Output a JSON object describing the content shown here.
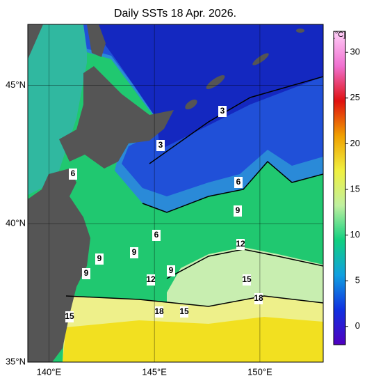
{
  "map": {
    "title": "Daily SSTs 18 Apr. 2026.",
    "lonlim": [
      139,
      153
    ],
    "latlim": [
      35,
      47.2
    ],
    "lon_ticks": [
      {
        "value": 140,
        "label": "140°E"
      },
      {
        "value": 145,
        "label": "145°E"
      },
      {
        "value": 150,
        "label": "150°E"
      }
    ],
    "lat_ticks": [
      {
        "value": 35,
        "label": "35°N"
      },
      {
        "value": 40,
        "label": "40°N"
      },
      {
        "value": 45,
        "label": "45°N"
      }
    ],
    "contour_labels": [
      "3",
      "3",
      "6",
      "6",
      "9",
      "6",
      "12",
      "9",
      "9",
      "9",
      "9",
      "12",
      "15",
      "18",
      "18",
      "15",
      "15"
    ],
    "colorbar": {
      "label": "[°C]",
      "range": [
        -2,
        32.3
      ],
      "ticks": [
        0,
        5,
        10,
        15,
        20,
        25,
        30
      ],
      "colors": [
        "#5000c0",
        "#1030e0",
        "#10a0e0",
        "#10d080",
        "#c0f0a0",
        "#f0f040",
        "#f0a000",
        "#e01010",
        "#f070d0",
        "#ffd0f8"
      ]
    }
  }
}
